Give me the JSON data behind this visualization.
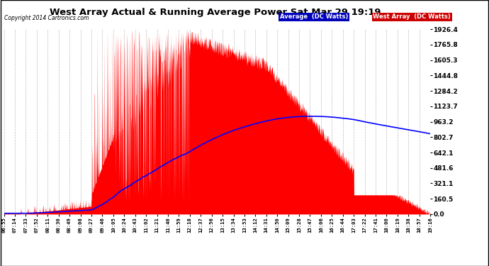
{
  "title": "West Array Actual & Running Average Power Sat Mar 29 19:19",
  "copyright": "Copyright 2014 Cartronics.com",
  "legend_avg": "Average  (DC Watts)",
  "legend_west": "West Array  (DC Watts)",
  "ymax": 1926.4,
  "yticks": [
    0.0,
    160.5,
    321.1,
    481.6,
    642.1,
    802.7,
    963.2,
    1123.7,
    1284.2,
    1444.8,
    1605.3,
    1765.8,
    1926.4
  ],
  "bg_color": "#ffffff",
  "plot_bg_color": "#ffffff",
  "grid_color": "#aaaaaa",
  "fill_color": "#ff0000",
  "avg_color": "#0000ff",
  "title_color": "#000000",
  "tick_label_color": "#000000",
  "xtick_labels": [
    "06:55",
    "07:14",
    "07:33",
    "07:52",
    "08:11",
    "08:30",
    "08:49",
    "09:08",
    "09:27",
    "09:46",
    "10:05",
    "10:24",
    "10:43",
    "11:02",
    "11:21",
    "11:40",
    "11:59",
    "12:18",
    "12:37",
    "12:56",
    "13:15",
    "13:34",
    "13:53",
    "14:12",
    "14:31",
    "14:50",
    "15:09",
    "15:28",
    "15:47",
    "16:06",
    "16:25",
    "16:44",
    "17:03",
    "17:22",
    "17:41",
    "18:00",
    "18:19",
    "18:38",
    "18:57",
    "19:16"
  ]
}
